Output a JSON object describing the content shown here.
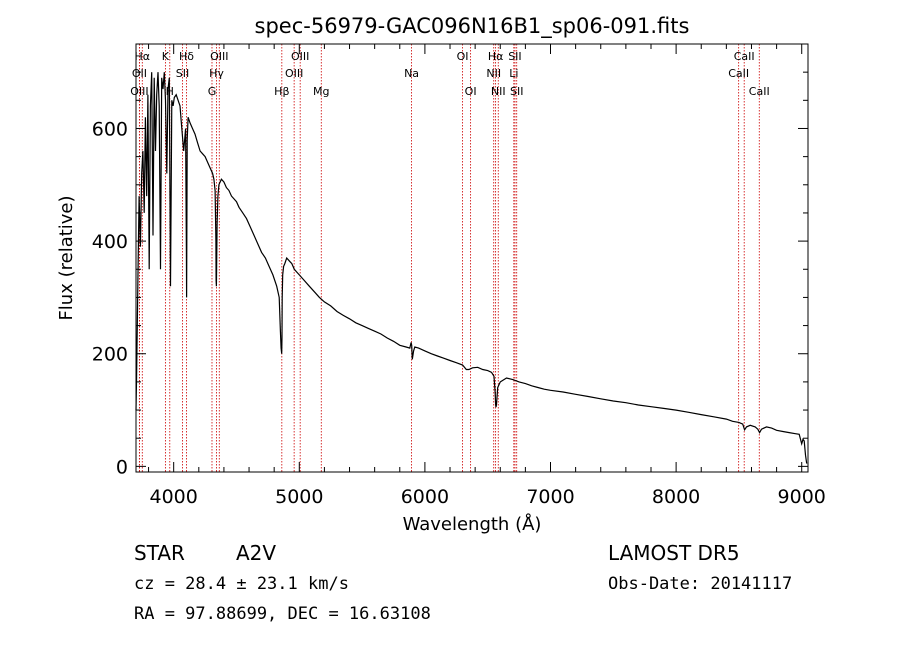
{
  "chart_data": {
    "type": "line",
    "title": "spec-56979-GAC096N16B1_sp06-091.fits",
    "xlabel": "Wavelength (Å)",
    "ylabel": "Flux (relative)",
    "xlim": [
      3700,
      9050
    ],
    "ylim": [
      -10,
      750
    ],
    "xticks": [
      4000,
      5000,
      6000,
      7000,
      8000,
      9000
    ],
    "yticks": [
      0,
      200,
      400,
      600
    ],
    "grid": false,
    "line_color": "#000000",
    "marker_color": "#cc0000",
    "series": [
      {
        "x": [
          3700,
          3705,
          3715,
          3725,
          3735,
          3745,
          3755,
          3765,
          3775,
          3785,
          3795,
          3805,
          3815,
          3825,
          3835,
          3845,
          3855,
          3865,
          3875,
          3885,
          3895,
          3905,
          3915,
          3925,
          3935,
          3945,
          3955,
          3965,
          3975,
          3985,
          3995,
          4005,
          4020,
          4035,
          4050,
          4065,
          4080,
          4095,
          4101,
          4103,
          4108,
          4115,
          4130,
          4150,
          4170,
          4190,
          4210,
          4230,
          4250,
          4270,
          4290,
          4310,
          4320,
          4330,
          4336,
          4338,
          4340,
          4342,
          4346,
          4352,
          4360,
          4380,
          4400,
          4420,
          4440,
          4460,
          4480,
          4500,
          4520,
          4550,
          4580,
          4610,
          4640,
          4670,
          4700,
          4730,
          4760,
          4790,
          4820,
          4840,
          4850,
          4855,
          4860,
          4862,
          4864,
          4868,
          4875,
          4885,
          4900,
          4920,
          4940,
          4960,
          4980,
          5000,
          5040,
          5080,
          5120,
          5160,
          5200,
          5250,
          5300,
          5350,
          5400,
          5450,
          5500,
          5550,
          5600,
          5650,
          5700,
          5750,
          5800,
          5850,
          5880,
          5890,
          5895,
          5900,
          5910,
          5920,
          5950,
          6000,
          6050,
          6100,
          6150,
          6200,
          6250,
          6300,
          6330,
          6350,
          6380,
          6420,
          6460,
          6500,
          6530,
          6550,
          6555,
          6560,
          6563,
          6566,
          6570,
          6580,
          6600,
          6650,
          6700,
          6750,
          6800,
          6850,
          6900,
          6950,
          7000,
          7100,
          7200,
          7300,
          7400,
          7500,
          7600,
          7700,
          7800,
          7900,
          8000,
          8100,
          8200,
          8300,
          8400,
          8450,
          8500,
          8530,
          8545,
          8560,
          8590,
          8630,
          8650,
          8665,
          8680,
          8720,
          8760,
          8800,
          8850,
          8900,
          8950,
          8980,
          9000,
          9010,
          9020,
          9030,
          9040
        ],
        "y": [
          100,
          160,
          330,
          480,
          390,
          520,
          560,
          450,
          620,
          480,
          660,
          350,
          640,
          700,
          410,
          690,
          560,
          660,
          700,
          640,
          350,
          690,
          670,
          700,
          650,
          520,
          670,
          690,
          320,
          650,
          640,
          655,
          660,
          650,
          640,
          600,
          560,
          600,
          380,
          300,
          580,
          620,
          610,
          600,
          590,
          575,
          560,
          555,
          550,
          540,
          530,
          520,
          510,
          490,
          400,
          330,
          320,
          350,
          430,
          480,
          500,
          510,
          505,
          495,
          490,
          480,
          475,
          470,
          460,
          450,
          440,
          425,
          410,
          395,
          380,
          370,
          355,
          340,
          320,
          300,
          240,
          210,
          200,
          230,
          300,
          340,
          355,
          360,
          370,
          365,
          360,
          350,
          345,
          340,
          330,
          320,
          310,
          300,
          292,
          285,
          275,
          268,
          262,
          255,
          250,
          245,
          240,
          235,
          228,
          222,
          215,
          212,
          210,
          220,
          215,
          190,
          205,
          212,
          210,
          205,
          200,
          196,
          192,
          188,
          184,
          180,
          172,
          172,
          175,
          176,
          172,
          170,
          167,
          160,
          145,
          130,
          110,
          105,
          110,
          140,
          150,
          157,
          154,
          150,
          147,
          143,
          140,
          137,
          135,
          132,
          128,
          124,
          120,
          116,
          113,
          109,
          106,
          103,
          100,
          96,
          92,
          88,
          84,
          80,
          78,
          75,
          65,
          70,
          73,
          70,
          66,
          60,
          66,
          70,
          68,
          64,
          62,
          60,
          58,
          57,
          40,
          48,
          45,
          20,
          5
        ]
      }
    ],
    "line_markers": [
      {
        "label": "Hα",
        "lambda": 3750,
        "tier": 0
      },
      {
        "label": "OII",
        "lambda": 3727,
        "tier": 1
      },
      {
        "label": "OIII",
        "lambda": 3727,
        "tier": 2
      },
      {
        "label": "K",
        "lambda": 3934,
        "tier": 0
      },
      {
        "label": "H",
        "lambda": 3969,
        "tier": 2
      },
      {
        "label": "Hδ",
        "lambda": 4102,
        "tier": 0
      },
      {
        "label": "SII",
        "lambda": 4070,
        "tier": 1
      },
      {
        "label": "OIII",
        "lambda": 4363,
        "tier": 0
      },
      {
        "label": "Hγ",
        "lambda": 4341,
        "tier": 1
      },
      {
        "label": "G",
        "lambda": 4305,
        "tier": 2
      },
      {
        "label": "OIII",
        "lambda": 5007,
        "tier": 0
      },
      {
        "label": "OIII",
        "lambda": 4959,
        "tier": 1
      },
      {
        "label": "Hβ",
        "lambda": 4861,
        "tier": 2
      },
      {
        "label": "Mg",
        "lambda": 5175,
        "tier": 2
      },
      {
        "label": "Na",
        "lambda": 5894,
        "tier": 1
      },
      {
        "label": "OI",
        "lambda": 6300,
        "tier": 0
      },
      {
        "label": "OI",
        "lambda": 6364,
        "tier": 2
      },
      {
        "label": "Hα",
        "lambda": 6563,
        "tier": 0
      },
      {
        "label": "NII",
        "lambda": 6548,
        "tier": 1
      },
      {
        "label": "NII",
        "lambda": 6584,
        "tier": 2
      },
      {
        "label": "SII",
        "lambda": 6717,
        "tier": 0
      },
      {
        "label": "Li",
        "lambda": 6708,
        "tier": 1
      },
      {
        "label": "SII",
        "lambda": 6731,
        "tier": 2
      },
      {
        "label": "CaII",
        "lambda": 8542,
        "tier": 0
      },
      {
        "label": "CaII",
        "lambda": 8498,
        "tier": 1
      },
      {
        "label": "CaII",
        "lambda": 8662,
        "tier": 2
      }
    ]
  },
  "info": {
    "object_class": "STAR",
    "subclass": "A2V",
    "survey": "LAMOST DR5",
    "redshift": "cz = 28.4 ± 23.1 km/s",
    "obs_date": "Obs-Date: 20141117",
    "coords": "RA =  97.88699, DEC =  16.63108"
  }
}
